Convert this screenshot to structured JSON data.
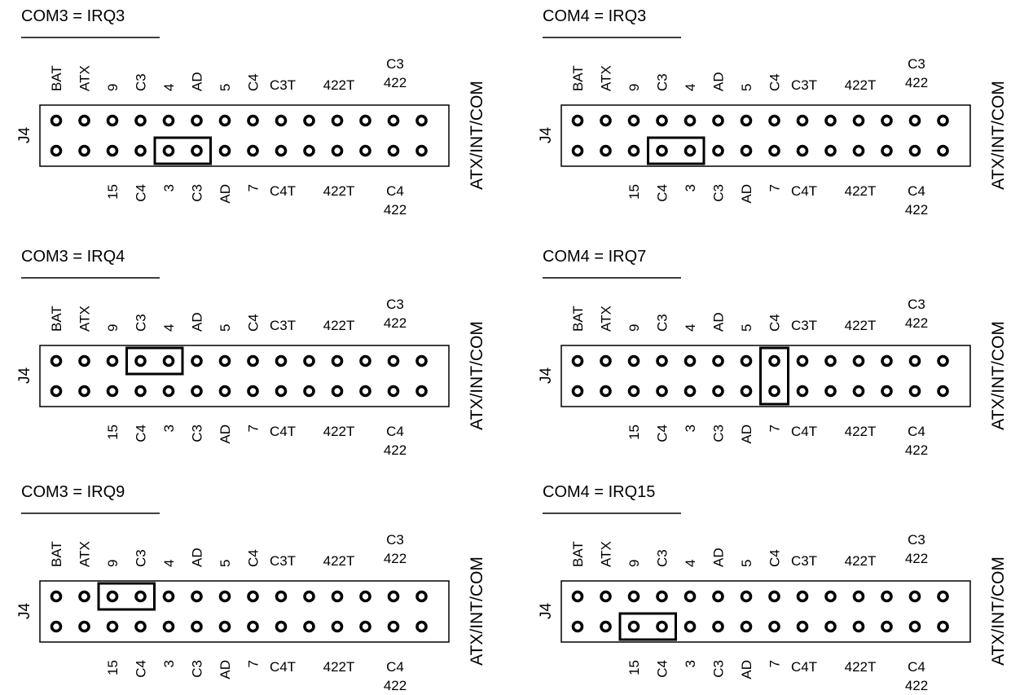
{
  "connector_label": "J4",
  "side_label": "ATX/INT/COM",
  "top_labels": [
    [
      "BAT"
    ],
    [
      "ATX"
    ],
    [
      "9"
    ],
    [
      "C3"
    ],
    [
      "4"
    ],
    [
      "AD"
    ],
    [
      "5"
    ],
    [
      "C4"
    ],
    [
      "C3T"
    ],
    [],
    [
      "422T"
    ],
    [],
    [
      "C3",
      "422"
    ],
    []
  ],
  "bottom_labels": [
    [],
    [],
    [
      "15"
    ],
    [
      "C4"
    ],
    [
      "3"
    ],
    [
      "C3"
    ],
    [
      "AD"
    ],
    [
      "7"
    ],
    [
      "C4T"
    ],
    [],
    [
      "422T"
    ],
    [],
    [
      "C4",
      "422"
    ],
    []
  ],
  "configs": [
    {
      "title": "COM3 = IRQ3",
      "jumper": {
        "cols": [
          4,
          5
        ],
        "rows": [
          1
        ]
      }
    },
    {
      "title": "COM4 = IRQ3",
      "jumper": {
        "cols": [
          3,
          4
        ],
        "rows": [
          1
        ]
      }
    },
    {
      "title": "COM3 = IRQ4",
      "jumper": {
        "cols": [
          3,
          4
        ],
        "rows": [
          0
        ]
      }
    },
    {
      "title": "COM4 = IRQ7",
      "jumper": {
        "cols": [
          7
        ],
        "rows": [
          0,
          1
        ]
      }
    },
    {
      "title": "COM3 = IRQ9",
      "jumper": {
        "cols": [
          2,
          3
        ],
        "rows": [
          0
        ]
      }
    },
    {
      "title": "COM4 = IRQ15",
      "jumper": {
        "cols": [
          2,
          3
        ],
        "rows": [
          1
        ]
      }
    }
  ]
}
